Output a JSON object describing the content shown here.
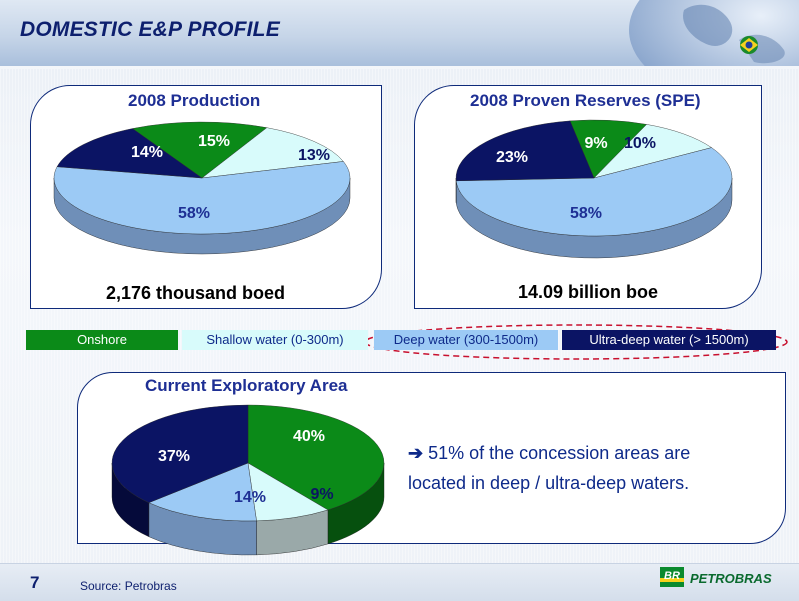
{
  "header": {
    "title": "DOMESTIC E&P PROFILE"
  },
  "colors": {
    "onshore": "#0b8a18",
    "shallow": "#d8fbfb",
    "deep": "#9ccaf5",
    "ultra": "#0b1464",
    "panel_border": "#0e2a7a",
    "title_blue": "#1e2f94"
  },
  "legend": {
    "onshore": "Onshore",
    "shallow": "Shallow water (0-300m)",
    "deep": "Deep water (300-1500m)",
    "ultra": "Ultra-deep water (> 1500m)"
  },
  "production": {
    "title": "2008 Production",
    "total_label": "2,176 thousand boed"
  },
  "reserves": {
    "title": "2008 Proven Reserves (SPE)",
    "total_label": "14.09 billion boe"
  },
  "exploratory": {
    "title": "Current Exploratory Area"
  },
  "note": {
    "arrow": "➔",
    "line1": "51% of the concession areas are",
    "line2": "located in deep / ultra-deep waters."
  },
  "footer": {
    "page": "7",
    "source": "Source: Petrobras",
    "logo_badge": "BR",
    "logo_text": "PETROBRAS"
  },
  "chart_data": [
    {
      "type": "pie",
      "title": "2008 Production",
      "categories": [
        "Onshore",
        "Shallow water (0-300m)",
        "Deep water (300-1500m)",
        "Ultra-deep water (> 1500m)"
      ],
      "values": [
        15,
        13,
        58,
        14
      ],
      "labels": [
        "15%",
        "13%",
        "58%",
        "14%"
      ]
    },
    {
      "type": "pie",
      "title": "2008 Proven Reserves (SPE)",
      "categories": [
        "Onshore",
        "Shallow water (0-300m)",
        "Deep water (300-1500m)",
        "Ultra-deep water (> 1500m)"
      ],
      "values": [
        9,
        10,
        58,
        23
      ],
      "labels": [
        "9%",
        "10%",
        "58%",
        "23%"
      ]
    },
    {
      "type": "pie",
      "title": "Current Exploratory Area",
      "categories": [
        "Onshore",
        "Shallow water (0-300m)",
        "Deep water (300-1500m)",
        "Ultra-deep water (> 1500m)"
      ],
      "values": [
        40,
        9,
        14,
        37
      ],
      "labels": [
        "40%",
        "9%",
        "14%",
        "37%"
      ]
    }
  ]
}
